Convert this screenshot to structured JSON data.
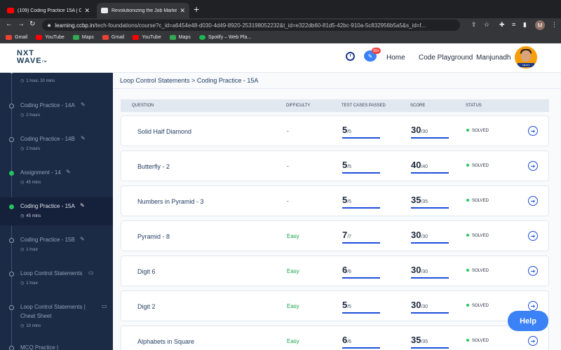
{
  "browser": {
    "tabs": [
      {
        "label": "(109) Coding Practice 15A | CC",
        "fav_color": "#ff0000"
      },
      {
        "label": "Revolutionizing the Job Marke",
        "fav_color": "#e8eaed"
      }
    ],
    "new_tab": "+",
    "url_host": "learning.ccbp.in",
    "url_path": "/tech-foundations/course?c_id=a6454e48-d030-4d49-8920-253198052232&t_id=e322db60-81d5-42bc-910a-5c832956b5a5&s_id=f...",
    "profile_initial": "M",
    "bookmarks": [
      {
        "label": "Gmail",
        "icon_color": "#ea4335"
      },
      {
        "label": "YouTube",
        "icon_color": "#ff0000"
      },
      {
        "label": "Maps",
        "icon_color": "#34a853"
      },
      {
        "label": "Gmail",
        "icon_color": "#ea4335"
      },
      {
        "label": "YouTube",
        "icon_color": "#ff0000"
      },
      {
        "label": "Maps",
        "icon_color": "#34a853"
      },
      {
        "label": "Spotify – Web Pla...",
        "icon_color": "#1db954"
      }
    ]
  },
  "header": {
    "logo_line1": "NXT",
    "logo_line2": "WAVE",
    "logo_tm": "TM",
    "chat_badge": "99+",
    "home": "Home",
    "playground": "Code Playground",
    "user": "Manjunadh",
    "avatar_ribbon": "SMART"
  },
  "sidebar": {
    "items": [
      {
        "title": "",
        "duration": "1 hour, 30 mins",
        "done": false,
        "icon": "edit-icon"
      },
      {
        "title": "Coding Practice - 14A",
        "duration": "2 hours",
        "done": false,
        "icon": "edit-icon"
      },
      {
        "title": "Coding Practice - 14B",
        "duration": "2 hours",
        "done": false,
        "icon": "edit-icon"
      },
      {
        "title": "Assignment - 14",
        "duration": "45 mins",
        "done": true,
        "icon": "edit-icon"
      },
      {
        "title": "Coding Practice - 15A",
        "duration": "45 mins",
        "done": true,
        "icon": "edit-icon",
        "active": true
      },
      {
        "title": "Coding Practice - 15B",
        "duration": "1 hour",
        "done": false,
        "icon": "edit-icon"
      },
      {
        "title": "Loop Control Statements",
        "duration": "1 hour",
        "done": false,
        "icon": "book-icon"
      },
      {
        "title": "Loop Control Statements |",
        "title2": "Cheat Sheet",
        "duration": "10 mins",
        "done": false,
        "icon": "book-icon"
      },
      {
        "title": "MCQ Practice |",
        "duration": "",
        "done": false,
        "icon": "edit-icon"
      }
    ]
  },
  "main": {
    "breadcrumb": "Loop Control Statements > Coding Practice - 15A",
    "columns": {
      "question": "QUESTION",
      "difficulty": "DIFFICULTY",
      "tests": "TEST CASES PASSED",
      "score": "SCORE",
      "status": "STATUS"
    },
    "rows": [
      {
        "question": "Solid Half Diamond",
        "difficulty": "-",
        "passed": "5",
        "total": "/5",
        "score": "30",
        "max": "/30",
        "status": "SOLVED"
      },
      {
        "question": "Butterfly - 2",
        "difficulty": "-",
        "passed": "5",
        "total": "/5",
        "score": "40",
        "max": "/40",
        "status": "SOLVED"
      },
      {
        "question": "Numbers in Pyramid - 3",
        "difficulty": "-",
        "passed": "5",
        "total": "/5",
        "score": "35",
        "max": "/35",
        "status": "SOLVED"
      },
      {
        "question": "Pyramid - 8",
        "difficulty": "Easy",
        "passed": "7",
        "total": "/7",
        "score": "30",
        "max": "/30",
        "status": "SOLVED"
      },
      {
        "question": "Digit 6",
        "difficulty": "Easy",
        "passed": "6",
        "total": "/6",
        "score": "30",
        "max": "/30",
        "status": "SOLVED"
      },
      {
        "question": "Digit 2",
        "difficulty": "Easy",
        "passed": "5",
        "total": "/5",
        "score": "30",
        "max": "/30",
        "status": "SOLVED"
      },
      {
        "question": "Alphabets in Square",
        "difficulty": "Easy",
        "passed": "6",
        "total": "/6",
        "score": "35",
        "max": "/35",
        "status": "SOLVED"
      }
    ]
  },
  "help": "Help"
}
